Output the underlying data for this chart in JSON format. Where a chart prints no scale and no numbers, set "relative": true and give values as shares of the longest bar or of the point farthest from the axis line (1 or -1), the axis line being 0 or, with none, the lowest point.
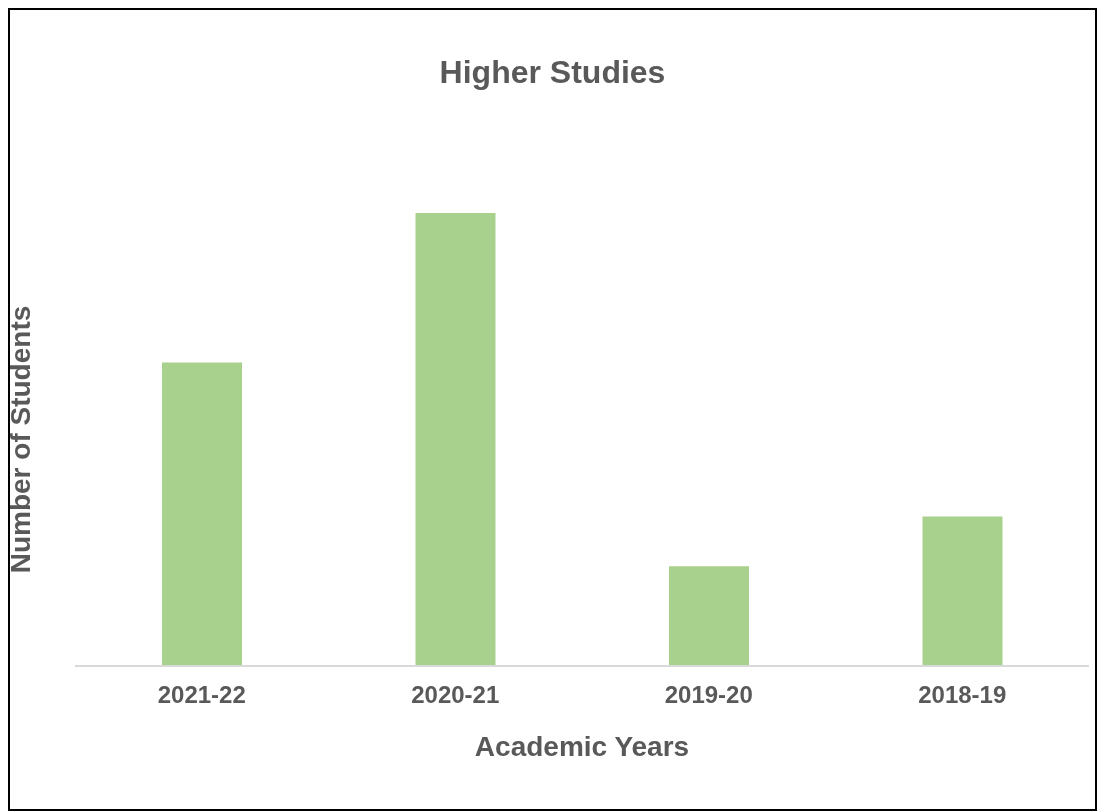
{
  "chart_data": {
    "type": "bar",
    "title": "Higher Studies",
    "xlabel": "Academic Years",
    "ylabel": "Number of Students",
    "categories": [
      "2021-22",
      "2020-21",
      "2019-20",
      "2018-19"
    ],
    "values": [
      0.67,
      1,
      0.22,
      0.33
    ],
    "color": "#a9d18e",
    "relative": true,
    "grid": false,
    "legend": false
  }
}
